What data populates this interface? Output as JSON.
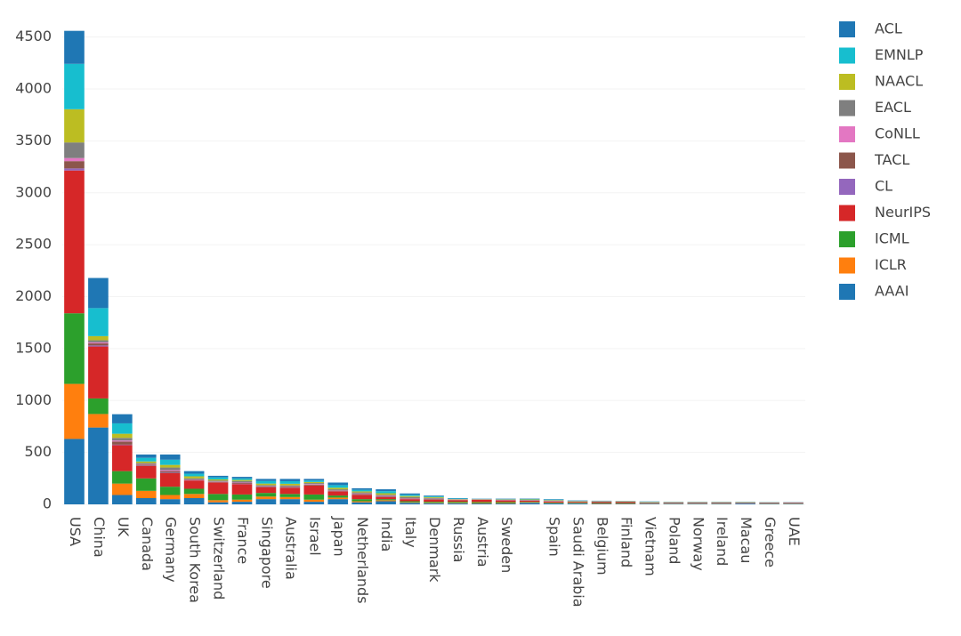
{
  "chart_data": {
    "type": "stacked_bar",
    "categories": [
      "USA",
      "China",
      "UK",
      "Canada",
      "Germany",
      "South Korea",
      "Switzerland",
      "France",
      "Singapore",
      "Australia",
      "Israel",
      "Japan",
      "Netherlands",
      "India",
      "Italy",
      "Denmark",
      "Russia",
      "Austria",
      "Sweden",
      null,
      "Spain",
      "Saudi Arabia",
      "Belgium",
      "Finland",
      "Vietnam",
      "Poland",
      "Norway",
      "Ireland",
      "Macau",
      "Greece",
      "UAE"
    ],
    "series": [
      {
        "name": "ACL",
        "color": "#1f77b4",
        "values": [
          318,
          290,
          88,
          32,
          50,
          25,
          15,
          15,
          20,
          22,
          15,
          25,
          15,
          18,
          13,
          7,
          4,
          2,
          3,
          4,
          4,
          3,
          2,
          1,
          2,
          2,
          2,
          2,
          2,
          1,
          2
        ]
      },
      {
        "name": "EMNLP",
        "color": "#17becf",
        "values": [
          437,
          270,
          100,
          35,
          50,
          25,
          20,
          15,
          25,
          25,
          15,
          25,
          15,
          20,
          12,
          8,
          4,
          2,
          3,
          4,
          5,
          3,
          2,
          2,
          3,
          2,
          2,
          2,
          2,
          2,
          1
        ]
      },
      {
        "name": "NAACL",
        "color": "#bcbd22",
        "values": [
          320,
          40,
          40,
          15,
          25,
          20,
          10,
          10,
          15,
          15,
          10,
          15,
          10,
          15,
          10,
          8,
          3,
          2,
          3,
          4,
          4,
          3,
          2,
          2,
          3,
          2,
          2,
          2,
          2,
          2,
          1
        ]
      },
      {
        "name": "EACL",
        "color": "#7f7f7f",
        "values": [
          150,
          20,
          25,
          10,
          25,
          10,
          10,
          15,
          10,
          10,
          10,
          10,
          10,
          10,
          10,
          8,
          3,
          2,
          3,
          3,
          4,
          2,
          2,
          2,
          2,
          2,
          2,
          2,
          2,
          2,
          1
        ]
      },
      {
        "name": "CoNLL",
        "color": "#e377c2",
        "values": [
          30,
          10,
          10,
          5,
          10,
          3,
          3,
          5,
          3,
          3,
          5,
          3,
          5,
          5,
          3,
          3,
          2,
          1,
          2,
          2,
          2,
          1,
          1,
          1,
          1,
          1,
          1,
          1,
          1,
          1,
          1
        ]
      },
      {
        "name": "TACL",
        "color": "#8c564b",
        "values": [
          70,
          20,
          30,
          10,
          15,
          5,
          5,
          8,
          5,
          8,
          8,
          5,
          8,
          5,
          5,
          5,
          3,
          2,
          2,
          2,
          2,
          2,
          2,
          2,
          1,
          1,
          1,
          1,
          1,
          1,
          1
        ]
      },
      {
        "name": "CL",
        "color": "#9467bd",
        "values": [
          20,
          10,
          5,
          3,
          5,
          2,
          2,
          2,
          2,
          2,
          2,
          2,
          2,
          2,
          2,
          1,
          1,
          1,
          1,
          1,
          1,
          0,
          1,
          0,
          0,
          0,
          0,
          0,
          0,
          0,
          0
        ]
      },
      {
        "name": "NeurIPS",
        "color": "#d62728",
        "values": [
          1375,
          500,
          250,
          120,
          130,
          80,
          110,
          100,
          55,
          60,
          85,
          40,
          40,
          20,
          20,
          20,
          15,
          20,
          15,
          10,
          10,
          8,
          10,
          10,
          5,
          5,
          5,
          5,
          4,
          4,
          5
        ]
      },
      {
        "name": "ICML",
        "color": "#2ca02c",
        "values": [
          680,
          150,
          120,
          120,
          80,
          50,
          60,
          50,
          35,
          30,
          50,
          20,
          20,
          10,
          10,
          10,
          10,
          10,
          10,
          5,
          5,
          5,
          5,
          5,
          3,
          3,
          3,
          3,
          2,
          2,
          3
        ]
      },
      {
        "name": "ICLR",
        "color": "#ff7f0e",
        "values": [
          530,
          130,
          110,
          70,
          40,
          40,
          20,
          20,
          25,
          20,
          20,
          15,
          10,
          10,
          5,
          5,
          5,
          5,
          5,
          5,
          3,
          3,
          3,
          3,
          2,
          2,
          2,
          2,
          1,
          2,
          2
        ]
      },
      {
        "name": "AAAI",
        "color": "#1f77b4",
        "values": [
          630,
          740,
          90,
          60,
          50,
          60,
          20,
          25,
          50,
          50,
          25,
          50,
          20,
          30,
          15,
          10,
          10,
          8,
          8,
          15,
          10,
          8,
          5,
          5,
          6,
          5,
          5,
          5,
          8,
          5,
          5
        ]
      }
    ],
    "ylim": [
      0,
      4600
    ],
    "yticks": [
      0,
      500,
      1000,
      1500,
      2000,
      2500,
      3000,
      3500,
      4000,
      4500
    ],
    "grid": true,
    "legend": "top-right"
  }
}
